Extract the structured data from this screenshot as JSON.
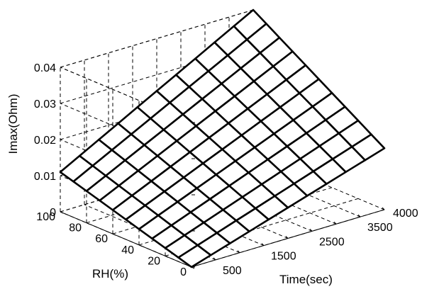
{
  "chart_data": {
    "type": "surface",
    "title": "",
    "xlabel": "Time(sec)",
    "ylabel": "RH(%)",
    "zlabel": "Imax(Ohm)",
    "x_ticks": [
      "500",
      "1500",
      "2500",
      "3500",
      "4000"
    ],
    "y_ticks": [
      "0",
      "20",
      "40",
      "60",
      "80",
      "100"
    ],
    "z_ticks": [
      "0",
      "0.01",
      "0.02",
      "0.03",
      "0.04"
    ],
    "xlim": [
      0,
      4000
    ],
    "ylim": [
      0,
      100
    ],
    "zlim": [
      0,
      0.04
    ],
    "grid": true,
    "x": [
      0,
      400,
      800,
      1200,
      1600,
      2000,
      2400,
      2800,
      3200,
      3600,
      4000
    ],
    "y": [
      0,
      10,
      20,
      30,
      40,
      50,
      60,
      70,
      80,
      90,
      100
    ],
    "corner_values": {
      "time_0_rh_0": 0.0,
      "time_4000_rh_0": 0.017,
      "time_0_rh_100": 0.011,
      "time_4000_rh_100": 0.04
    }
  }
}
